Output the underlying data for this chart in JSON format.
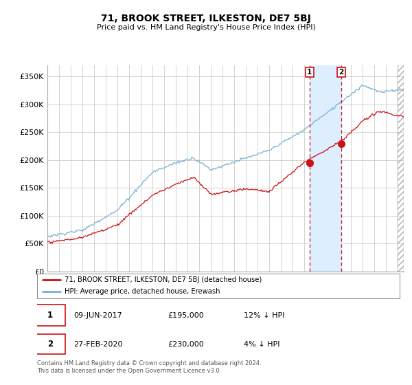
{
  "title": "71, BROOK STREET, ILKESTON, DE7 5BJ",
  "subtitle": "Price paid vs. HM Land Registry's House Price Index (HPI)",
  "ylabel_ticks": [
    "£0",
    "£50K",
    "£100K",
    "£150K",
    "£200K",
    "£250K",
    "£300K",
    "£350K"
  ],
  "ytick_vals": [
    0,
    50000,
    100000,
    150000,
    200000,
    250000,
    300000,
    350000
  ],
  "ylim": [
    0,
    370000
  ],
  "xlim_start": 1995.0,
  "xlim_end": 2025.5,
  "hpi_color": "#7ab0d4",
  "price_color": "#cc1111",
  "marker1_x": 2017.44,
  "marker1_y": 195000,
  "marker2_x": 2020.16,
  "marker2_y": 230000,
  "shade_color": "#ddeeff",
  "legend_line1": "71, BROOK STREET, ILKESTON, DE7 5BJ (detached house)",
  "legend_line2": "HPI: Average price, detached house, Erewash",
  "table_row1": [
    "1",
    "09-JUN-2017",
    "£195,000",
    "12% ↓ HPI"
  ],
  "table_row2": [
    "2",
    "27-FEB-2020",
    "£230,000",
    "4% ↓ HPI"
  ],
  "footer": "Contains HM Land Registry data © Crown copyright and database right 2024.\nThis data is licensed under the Open Government Licence v3.0.",
  "background_color": "#ffffff",
  "grid_color": "#cccccc"
}
